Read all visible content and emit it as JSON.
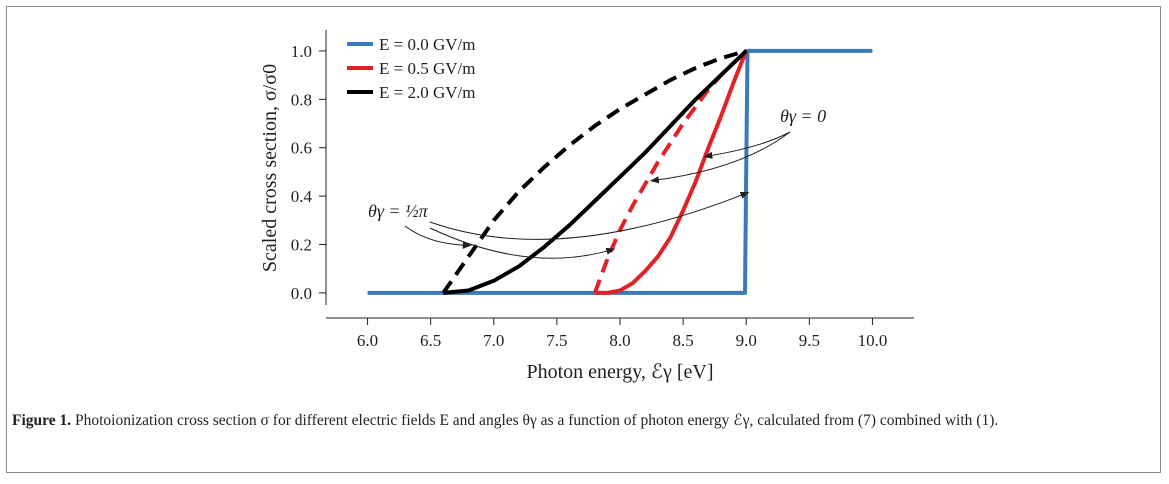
{
  "chart_data": {
    "type": "line",
    "xlabel": "Photon energy, ℰγ [eV]",
    "ylabel": "Scaled cross section, σ/σ0",
    "xlim": [
      5.75,
      10.25
    ],
    "ylim": [
      -0.05,
      1.07
    ],
    "x_ticks": [
      "6.0",
      "6.5",
      "7.0",
      "7.5",
      "8.0",
      "8.5",
      "9.0",
      "9.5",
      "10.0"
    ],
    "y_ticks": [
      "0.0",
      "0.2",
      "0.4",
      "0.6",
      "0.8",
      "1.0"
    ],
    "grid": false,
    "legend_position": "top-left",
    "series": [
      {
        "name": "E = 0.0 GV/m",
        "color": "#3a7ab8",
        "style": "solid",
        "x": [
          6.0,
          8.99,
          9.0,
          9.01,
          10.0
        ],
        "y": [
          0.0,
          0.0,
          0.5,
          1.0,
          1.0
        ]
      },
      {
        "name": "E = 0.5 GV/m",
        "color": "#e32228",
        "style": "solid",
        "x": [
          7.8,
          7.9,
          8.0,
          8.1,
          8.2,
          8.3,
          8.4,
          8.5,
          8.6,
          8.7,
          8.8,
          8.9,
          9.0
        ],
        "y": [
          0.0,
          0.0,
          0.01,
          0.04,
          0.09,
          0.15,
          0.23,
          0.34,
          0.46,
          0.6,
          0.73,
          0.87,
          1.0
        ]
      },
      {
        "name": "E = 0.5 GV/m",
        "color": "#e32228",
        "style": "dashed",
        "x": [
          7.8,
          7.9,
          8.0,
          8.1,
          8.2,
          8.3,
          8.4,
          8.5,
          8.6,
          8.7,
          8.8,
          8.9,
          9.0
        ],
        "y": [
          0.0,
          0.14,
          0.26,
          0.36,
          0.45,
          0.54,
          0.62,
          0.7,
          0.77,
          0.84,
          0.9,
          0.95,
          1.0
        ]
      },
      {
        "name": "E = 2.0 GV/m",
        "color": "#000000",
        "style": "solid",
        "x": [
          6.6,
          6.8,
          7.0,
          7.2,
          7.4,
          7.6,
          7.8,
          8.0,
          8.2,
          8.4,
          8.6,
          8.8,
          9.0
        ],
        "y": [
          0.0,
          0.01,
          0.05,
          0.11,
          0.19,
          0.28,
          0.38,
          0.48,
          0.58,
          0.69,
          0.8,
          0.9,
          1.0
        ]
      },
      {
        "name": "E = 2.0 GV/m",
        "color": "#000000",
        "style": "dashed",
        "x": [
          6.6,
          6.8,
          7.0,
          7.2,
          7.4,
          7.6,
          7.8,
          8.0,
          8.2,
          8.4,
          8.6,
          8.8,
          9.0
        ],
        "y": [
          0.0,
          0.15,
          0.3,
          0.42,
          0.52,
          0.61,
          0.69,
          0.76,
          0.82,
          0.88,
          0.93,
          0.97,
          1.0
        ]
      }
    ],
    "legend": [
      {
        "label": "E = 0.0 GV/m",
        "color": "#3a7ab8"
      },
      {
        "label": "E = 0.5 GV/m",
        "color": "#e32228"
      },
      {
        "label": "E = 2.0 GV/m",
        "color": "#000000"
      }
    ],
    "annotations": [
      {
        "label": "θγ = 0",
        "arrow_targets": [
          [
            8.62,
            0.58
          ],
          [
            8.22,
            0.48
          ],
          [
            8.55,
            0.25
          ],
          [
            9.05,
            0.42
          ]
        ]
      },
      {
        "label": "θγ = ½π",
        "arrow_targets": [
          [
            6.85,
            0.18
          ],
          [
            8.05,
            0.19
          ]
        ]
      }
    ]
  },
  "caption": {
    "label": "Figure 1.",
    "text": " Photoionization cross section σ for different electric fields E and angles θγ as a function of photon energy ℰγ, calculated from (7) combined with (1).",
    "ref_7": "(7)",
    "ref_1": "(1)"
  }
}
